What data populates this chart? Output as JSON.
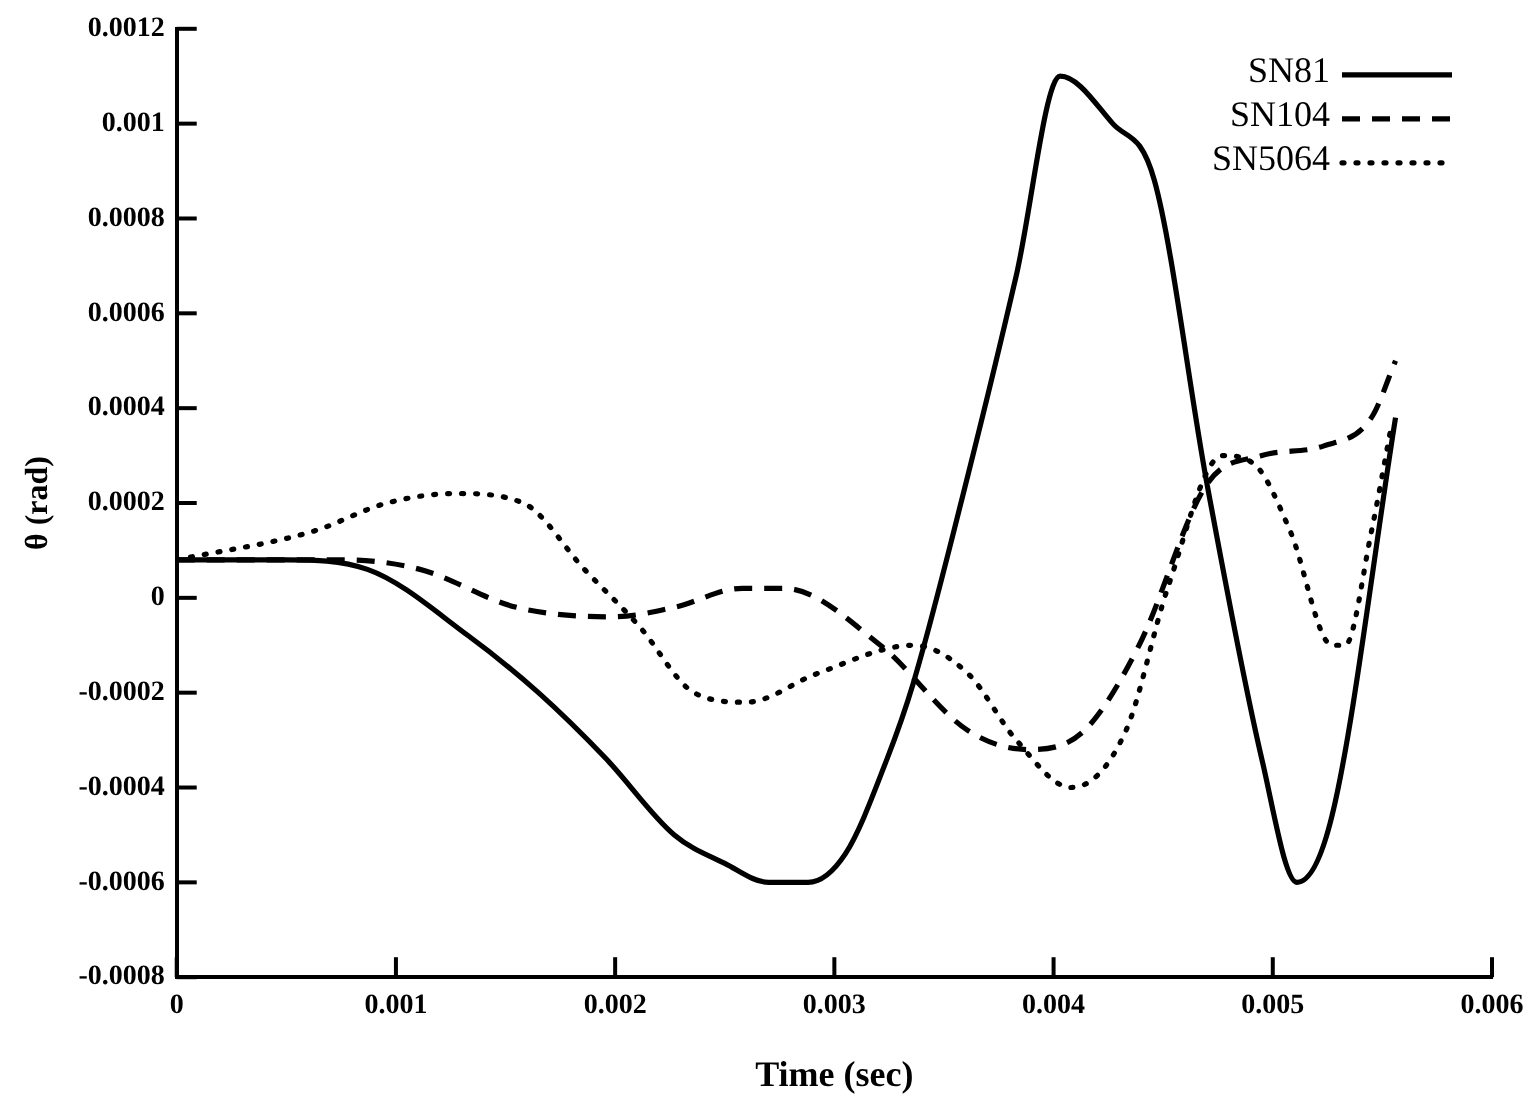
{
  "chart_data": {
    "type": "line",
    "xlabel": "Time (sec)",
    "ylabel": "θ (rad)",
    "xlim": [
      0,
      0.006
    ],
    "xticks": [
      0,
      0.001,
      0.002,
      0.003,
      0.004,
      0.005,
      0.006
    ],
    "ylim": [
      -0.0008,
      0.0012
    ],
    "yticks": [
      -0.0008,
      -0.0006,
      -0.0004,
      -0.0002,
      0,
      0.0002,
      0.0004,
      0.0006,
      0.0008,
      0.001,
      0.0012
    ],
    "grid": false,
    "legend": "top right",
    "marker": "none",
    "series": [
      {
        "name": "SN81",
        "color": "#000000",
        "line_style": "solid",
        "x": [
          0,
          0.0005,
          0.00087,
          0.00133,
          0.00165,
          0.00196,
          0.00227,
          0.0025,
          0.0027,
          0.00288,
          0.00305,
          0.00324,
          0.00336,
          0.00361,
          0.00383,
          0.00403,
          0.00427,
          0.00446,
          0.0047,
          0.00495,
          0.00511,
          0.00527,
          0.00556
        ],
        "values": [
          8e-05,
          8e-05,
          6e-05,
          -8e-05,
          -0.0002,
          -0.00034,
          -0.0005,
          -0.00056,
          -0.0006,
          -0.0006,
          -0.00054,
          -0.00034,
          -0.00018,
          0.00026,
          0.00068,
          0.0011,
          0.001,
          0.00088,
          0.00024,
          -0.00034,
          -0.0006,
          -0.00046,
          0.00038
        ]
      },
      {
        "name": "SN104",
        "color": "#000000",
        "line_style": "dashed",
        "x": [
          0,
          0.00077,
          0.00111,
          0.00155,
          0.00199,
          0.00227,
          0.00258,
          0.00277,
          0.00321,
          0.00361,
          0.00389,
          0.00414,
          0.00439,
          0.0047,
          0.00495,
          0.00523,
          0.00545,
          0.00556
        ],
        "values": [
          8e-05,
          8e-05,
          6e-05,
          -2e-05,
          -4e-05,
          -2e-05,
          2e-05,
          2e-05,
          -0.0001,
          -0.00028,
          -0.00032,
          -0.00028,
          -0.0001,
          0.00024,
          0.0003,
          0.00032,
          0.00038,
          0.0005
        ]
      },
      {
        "name": "SN5064",
        "color": "#000000",
        "line_style": "dotted",
        "x": [
          0,
          0.00062,
          0.00096,
          0.00127,
          0.00158,
          0.00186,
          0.00211,
          0.00236,
          0.0026,
          0.00292,
          0.00336,
          0.00361,
          0.00383,
          0.00408,
          0.00433,
          0.00452,
          0.00477,
          0.00492,
          0.00508,
          0.00527,
          0.00533,
          0.00545,
          0.00554
        ],
        "values": [
          8e-05,
          0.00014,
          0.0002,
          0.00022,
          0.0002,
          6e-05,
          -6e-05,
          -0.0002,
          -0.00022,
          -0.00016,
          -0.0001,
          -0.00016,
          -0.0003,
          -0.0004,
          -0.00028,
          2e-05,
          0.0003,
          0.00028,
          0.00014,
          -0.0001,
          -0.0001,
          0.00014,
          0.00036
        ]
      }
    ]
  }
}
